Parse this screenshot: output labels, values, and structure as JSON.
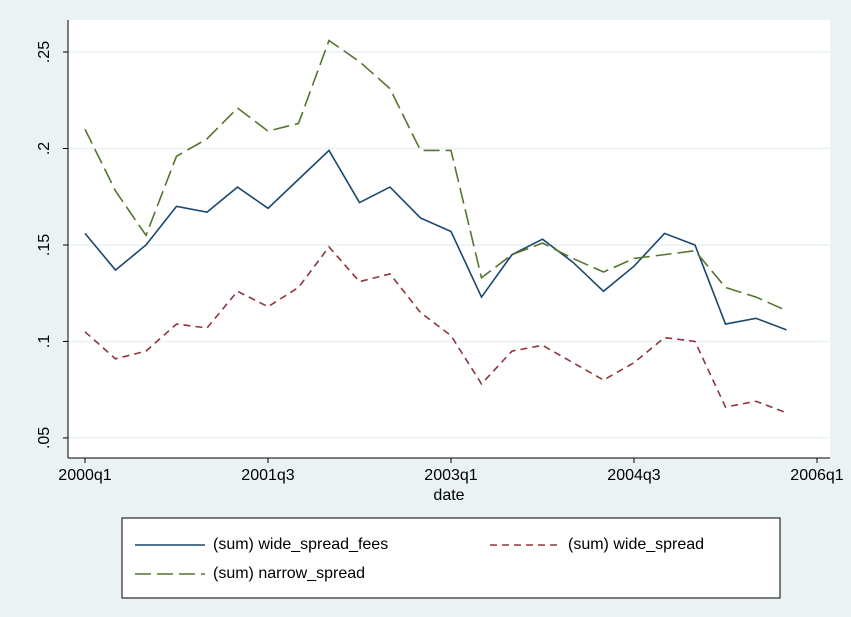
{
  "chart_data": {
    "type": "line",
    "x": [
      "2000q1",
      "2000q2",
      "2000q3",
      "2000q4",
      "2001q1",
      "2001q2",
      "2001q3",
      "2001q4",
      "2002q1",
      "2002q2",
      "2002q3",
      "2002q4",
      "2003q1",
      "2003q2",
      "2003q3",
      "2003q4",
      "2004q1",
      "2004q2",
      "2004q3",
      "2004q4",
      "2005q1",
      "2005q2",
      "2005q3",
      "2005q4"
    ],
    "series": [
      {
        "name": "(sum) wide_spread_fees",
        "color": "#1a476f",
        "dash": "none",
        "values": [
          0.156,
          0.137,
          0.15,
          0.17,
          0.167,
          0.18,
          0.169,
          0.184,
          0.199,
          0.172,
          0.18,
          0.164,
          0.157,
          0.123,
          0.145,
          0.153,
          0.141,
          0.126,
          0.139,
          0.156,
          0.15,
          0.109,
          0.112,
          0.106
        ]
      },
      {
        "name": "(sum) wide_spread",
        "color": "#90353b",
        "dash": "7 5",
        "values": [
          0.105,
          0.091,
          0.095,
          0.109,
          0.107,
          0.126,
          0.118,
          0.128,
          0.149,
          0.131,
          0.135,
          0.115,
          0.103,
          0.078,
          0.095,
          0.098,
          0.089,
          0.08,
          0.089,
          0.102,
          0.1,
          0.066,
          0.069,
          0.063
        ]
      },
      {
        "name": "(sum) narrow_spread",
        "color": "#55752f",
        "dash": "16 6",
        "values": [
          0.21,
          0.178,
          0.155,
          0.196,
          0.205,
          0.221,
          0.209,
          0.213,
          0.256,
          0.245,
          0.231,
          0.199,
          0.199,
          0.133,
          0.145,
          0.151,
          0.143,
          0.136,
          0.143,
          0.145,
          0.147,
          0.128,
          0.123,
          0.116
        ]
      }
    ],
    "x_label": "date",
    "xticks": [
      "2000q1",
      "2001q3",
      "2003q1",
      "2004q3",
      "2006q1"
    ],
    "ylim": [
      0.0396,
      0.2666
    ],
    "yticks": [
      {
        "value": 0.05,
        "label": ".05"
      },
      {
        "value": 0.1,
        "label": ".1"
      },
      {
        "value": 0.15,
        "label": ".15"
      },
      {
        "value": 0.2,
        "label": ".2"
      },
      {
        "value": 0.25,
        "label": ".25"
      }
    ],
    "grid": true,
    "legend": "bottom"
  }
}
